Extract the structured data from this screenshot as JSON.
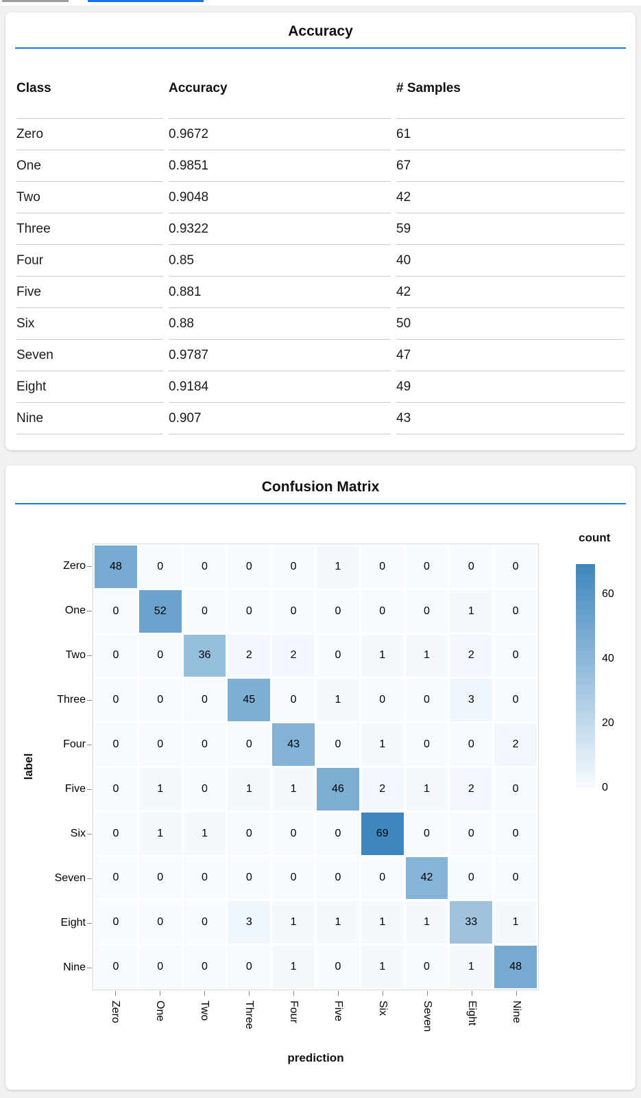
{
  "colors": {
    "accent_blue": "#1a73e8",
    "tab_inactive_gray": "#9e9e9e",
    "heatmap_low": "#f7fbff",
    "heatmap_high": "#3e86bd"
  },
  "chart_data": [
    {
      "type": "table",
      "title": "Accuracy",
      "columns": [
        "Class",
        "Accuracy",
        "# Samples"
      ],
      "rows": [
        [
          "Zero",
          "0.9672",
          "61"
        ],
        [
          "One",
          "0.9851",
          "67"
        ],
        [
          "Two",
          "0.9048",
          "42"
        ],
        [
          "Three",
          "0.9322",
          "59"
        ],
        [
          "Four",
          "0.85",
          "40"
        ],
        [
          "Five",
          "0.881",
          "42"
        ],
        [
          "Six",
          "0.88",
          "50"
        ],
        [
          "Seven",
          "0.9787",
          "47"
        ],
        [
          "Eight",
          "0.9184",
          "49"
        ],
        [
          "Nine",
          "0.907",
          "43"
        ]
      ]
    },
    {
      "type": "heatmap",
      "title": "Confusion Matrix",
      "xlabel": "prediction",
      "ylabel": "label",
      "x_categories": [
        "Zero",
        "One",
        "Two",
        "Three",
        "Four",
        "Five",
        "Six",
        "Seven",
        "Eight",
        "Nine"
      ],
      "y_categories": [
        "Zero",
        "One",
        "Two",
        "Three",
        "Four",
        "Five",
        "Six",
        "Seven",
        "Eight",
        "Nine"
      ],
      "matrix": [
        [
          48,
          0,
          0,
          0,
          0,
          1,
          0,
          0,
          0,
          0
        ],
        [
          0,
          52,
          0,
          0,
          0,
          0,
          0,
          0,
          1,
          0
        ],
        [
          0,
          0,
          36,
          2,
          2,
          0,
          1,
          1,
          2,
          0
        ],
        [
          0,
          0,
          0,
          45,
          0,
          1,
          0,
          0,
          3,
          0
        ],
        [
          0,
          0,
          0,
          0,
          43,
          0,
          1,
          0,
          0,
          2
        ],
        [
          0,
          1,
          0,
          1,
          1,
          46,
          2,
          1,
          2,
          0
        ],
        [
          0,
          1,
          1,
          0,
          0,
          0,
          69,
          0,
          0,
          0
        ],
        [
          0,
          0,
          0,
          0,
          0,
          0,
          0,
          42,
          0,
          0
        ],
        [
          0,
          0,
          0,
          3,
          1,
          1,
          1,
          1,
          33,
          1
        ],
        [
          0,
          0,
          0,
          0,
          1,
          0,
          1,
          0,
          1,
          48
        ]
      ],
      "legend": {
        "title": "count",
        "ticks": [
          60,
          40,
          20,
          0
        ],
        "domain": [
          0,
          69
        ]
      },
      "color_low": "#f7fbff",
      "color_high": "#3e86bd"
    }
  ]
}
